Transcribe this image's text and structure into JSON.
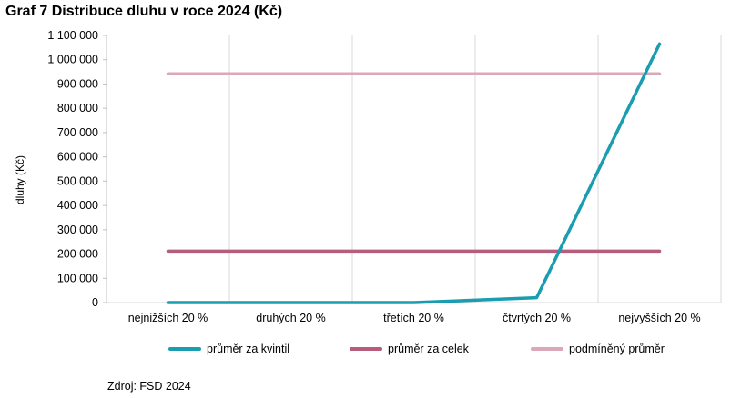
{
  "chart_data": {
    "type": "line",
    "title": "Graf 7 Distribuce dluhu v roce 2024 (Kč)",
    "xlabel": "",
    "ylabel": "dluhy (Kč)",
    "categories": [
      "nejnižších 20 %",
      "druhých 20 %",
      "třetích 20 %",
      "čtvrtých 20 %",
      "nejvyšších 20 %"
    ],
    "ylim": [
      0,
      1100000
    ],
    "yticks": [
      0,
      100000,
      200000,
      300000,
      400000,
      500000,
      600000,
      700000,
      800000,
      900000,
      1000000,
      1100000
    ],
    "ytick_labels": [
      "0",
      "100 000",
      "200 000",
      "300 000",
      "400 000",
      "500 000",
      "600 000",
      "700 000",
      "800 000",
      "900 000",
      "1 000 000",
      "1 100 000"
    ],
    "grid": "vertical",
    "legend_position": "bottom",
    "series": [
      {
        "name": "průměr za kvintil",
        "color": "#1a9db0",
        "values": [
          0,
          0,
          0,
          20000,
          1065000
        ]
      },
      {
        "name": "průměr za celek",
        "color": "#b85c7e",
        "values": [
          212000,
          212000,
          212000,
          212000,
          212000
        ]
      },
      {
        "name": "podmíněný průměr",
        "color": "#dba8ba",
        "values": [
          942000,
          942000,
          942000,
          942000,
          942000
        ]
      }
    ],
    "source": "Zdroj: FSD 2024"
  }
}
